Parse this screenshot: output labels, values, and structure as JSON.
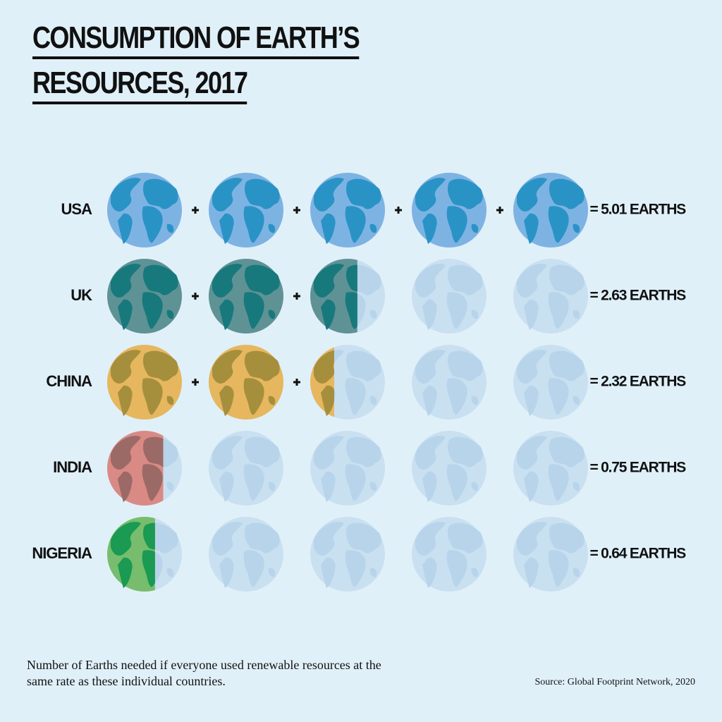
{
  "chart_data": {
    "type": "pictogram",
    "title": [
      "CONSUMPTION OF EARTH’S",
      "RESOURCES, 2017"
    ],
    "categories": [
      "USA",
      "UK",
      "CHINA",
      "INDIA",
      "NIGERIA"
    ],
    "values": [
      5.01,
      2.63,
      2.32,
      0.75,
      0.64
    ],
    "value_labels": [
      "= 5.01 EARTHS",
      "= 2.63 EARTHS",
      "= 2.32 EARTHS",
      "= 0.75 EARTHS",
      "= 0.64 EARTHS"
    ],
    "colors": [
      "#7db3e3",
      "#5f9295",
      "#e6b75f",
      "#d98a85",
      "#77bd6d"
    ],
    "land_colors": [
      "#2a93c6",
      "#17797c",
      "#a68f3c",
      "#9c6a66",
      "#1a9a52"
    ],
    "empty_color": "#c9e0f1",
    "empty_land_color": "#b7d4ea",
    "note": "Number of Earths needed if everyone used renewable resources at the same rate as these individual countries.",
    "source": "Source: Global Footprint Network, 2020"
  }
}
